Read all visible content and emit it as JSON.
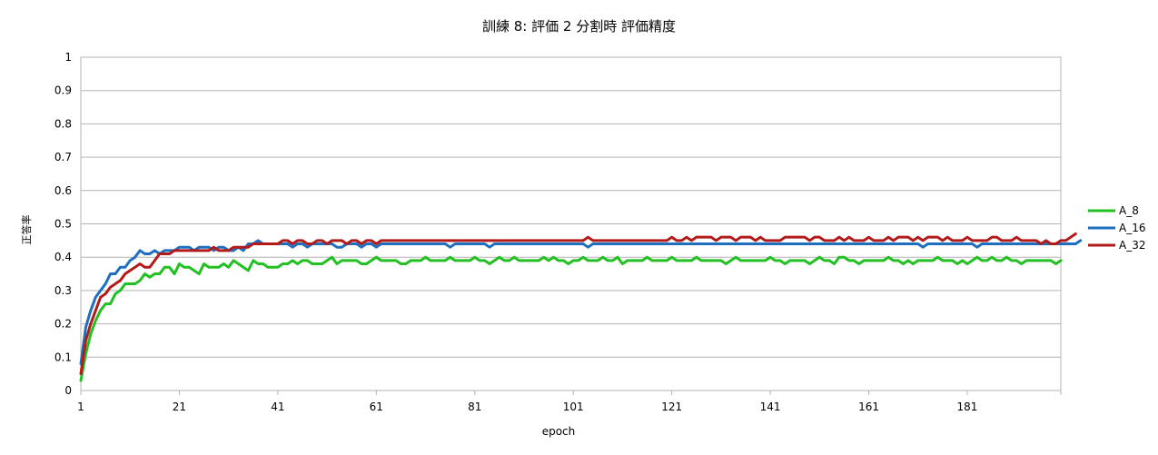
{
  "chart_data": {
    "type": "line",
    "title": "訓練 8: 評価 2  分割時 評価精度",
    "xlabel": "epoch",
    "ylabel": "正答率",
    "ylim": [
      0,
      1
    ],
    "y_ticks": [
      "0",
      "0.1",
      "0.2",
      "0.3",
      "0.4",
      "0.5",
      "0.6",
      "0.7",
      "0.8",
      "0.9",
      "1"
    ],
    "x_ticks": [
      "1",
      "21",
      "41",
      "61",
      "81",
      "101",
      "121",
      "141",
      "161",
      "181"
    ],
    "x_start": 1,
    "x_end": 200,
    "grid": "horizontal",
    "legend_position": "right",
    "series": [
      {
        "name": "A_8",
        "color": "#22c022",
        "values": [
          0.03,
          0.11,
          0.17,
          0.21,
          0.24,
          0.26,
          0.26,
          0.29,
          0.3,
          0.32,
          0.32,
          0.32,
          0.33,
          0.35,
          0.34,
          0.35,
          0.35,
          0.37,
          0.37,
          0.35,
          0.38,
          0.37,
          0.37,
          0.36,
          0.35,
          0.38,
          0.37,
          0.37,
          0.37,
          0.38,
          0.37,
          0.39,
          0.38,
          0.37,
          0.36,
          0.39,
          0.38,
          0.38,
          0.37,
          0.37,
          0.37,
          0.38,
          0.38,
          0.39,
          0.38,
          0.39,
          0.39,
          0.38,
          0.38,
          0.38,
          0.39,
          0.4,
          0.38,
          0.39,
          0.39,
          0.39,
          0.39,
          0.38,
          0.38,
          0.39,
          0.4,
          0.39,
          0.39,
          0.39,
          0.39,
          0.38,
          0.38,
          0.39,
          0.39,
          0.39,
          0.4,
          0.39,
          0.39,
          0.39,
          0.39,
          0.4,
          0.39,
          0.39,
          0.39,
          0.39,
          0.4,
          0.39,
          0.39,
          0.38,
          0.39,
          0.4,
          0.39,
          0.39,
          0.4,
          0.39,
          0.39,
          0.39,
          0.39,
          0.39,
          0.4,
          0.39,
          0.4,
          0.39,
          0.39,
          0.38,
          0.39,
          0.39,
          0.4,
          0.39,
          0.39,
          0.39,
          0.4,
          0.39,
          0.39,
          0.4,
          0.38,
          0.39,
          0.39,
          0.39,
          0.39,
          0.4,
          0.39,
          0.39,
          0.39,
          0.39,
          0.4,
          0.39,
          0.39,
          0.39,
          0.39,
          0.4,
          0.39,
          0.39,
          0.39,
          0.39,
          0.39,
          0.38,
          0.39,
          0.4,
          0.39,
          0.39,
          0.39,
          0.39,
          0.39,
          0.39,
          0.4,
          0.39,
          0.39,
          0.38,
          0.39,
          0.39,
          0.39,
          0.39,
          0.38,
          0.39,
          0.4,
          0.39,
          0.39,
          0.38,
          0.4,
          0.4,
          0.39,
          0.39,
          0.38,
          0.39,
          0.39,
          0.39,
          0.39,
          0.39,
          0.4,
          0.39,
          0.39,
          0.38,
          0.39,
          0.38,
          0.39,
          0.39,
          0.39,
          0.39,
          0.4,
          0.39,
          0.39,
          0.39,
          0.38,
          0.39,
          0.38,
          0.39,
          0.4,
          0.39,
          0.39,
          0.4,
          0.39,
          0.39,
          0.4,
          0.39,
          0.39,
          0.38,
          0.39,
          0.39,
          0.39,
          0.39,
          0.39,
          0.39,
          0.38,
          0.39
        ]
      },
      {
        "name": "A_16",
        "color": "#1f6fbf",
        "values": [
          0.08,
          0.19,
          0.24,
          0.28,
          0.3,
          0.32,
          0.35,
          0.35,
          0.37,
          0.37,
          0.39,
          0.4,
          0.42,
          0.41,
          0.41,
          0.42,
          0.41,
          0.42,
          0.42,
          0.42,
          0.43,
          0.43,
          0.43,
          0.42,
          0.43,
          0.43,
          0.43,
          0.42,
          0.43,
          0.43,
          0.42,
          0.42,
          0.43,
          0.42,
          0.44,
          0.44,
          0.45,
          0.44,
          0.44,
          0.44,
          0.44,
          0.44,
          0.44,
          0.43,
          0.44,
          0.44,
          0.43,
          0.44,
          0.44,
          0.44,
          0.44,
          0.44,
          0.43,
          0.43,
          0.44,
          0.44,
          0.44,
          0.43,
          0.44,
          0.44,
          0.43,
          0.44,
          0.44,
          0.44,
          0.44,
          0.44,
          0.44,
          0.44,
          0.44,
          0.44,
          0.44,
          0.44,
          0.44,
          0.44,
          0.44,
          0.43,
          0.44,
          0.44,
          0.44,
          0.44,
          0.44,
          0.44,
          0.44,
          0.43,
          0.44,
          0.44,
          0.44,
          0.44,
          0.44,
          0.44,
          0.44,
          0.44,
          0.44,
          0.44,
          0.44,
          0.44,
          0.44,
          0.44,
          0.44,
          0.44,
          0.44,
          0.44,
          0.44,
          0.43,
          0.44,
          0.44,
          0.44,
          0.44,
          0.44,
          0.44,
          0.44,
          0.44,
          0.44,
          0.44,
          0.44,
          0.44,
          0.44,
          0.44,
          0.44,
          0.44,
          0.44,
          0.44,
          0.44,
          0.44,
          0.44,
          0.44,
          0.44,
          0.44,
          0.44,
          0.44,
          0.44,
          0.44,
          0.44,
          0.44,
          0.44,
          0.44,
          0.44,
          0.44,
          0.44,
          0.44,
          0.44,
          0.44,
          0.44,
          0.44,
          0.44,
          0.44,
          0.44,
          0.44,
          0.44,
          0.44,
          0.44,
          0.44,
          0.44,
          0.44,
          0.44,
          0.44,
          0.44,
          0.44,
          0.44,
          0.44,
          0.44,
          0.44,
          0.44,
          0.44,
          0.44,
          0.44,
          0.44,
          0.44,
          0.44,
          0.44,
          0.44,
          0.43,
          0.44,
          0.44,
          0.44,
          0.44,
          0.44,
          0.44,
          0.44,
          0.44,
          0.44,
          0.44,
          0.43,
          0.44,
          0.44,
          0.44,
          0.44,
          0.44,
          0.44,
          0.44,
          0.44,
          0.44,
          0.44,
          0.44,
          0.44,
          0.44,
          0.44,
          0.44,
          0.44,
          0.44,
          0.44,
          0.44,
          0.44,
          0.45
        ]
      },
      {
        "name": "A_32",
        "color": "#b31b1b",
        "values": [
          0.05,
          0.15,
          0.2,
          0.24,
          0.28,
          0.29,
          0.31,
          0.32,
          0.33,
          0.35,
          0.36,
          0.37,
          0.38,
          0.37,
          0.37,
          0.39,
          0.41,
          0.41,
          0.41,
          0.42,
          0.42,
          0.42,
          0.42,
          0.42,
          0.42,
          0.42,
          0.42,
          0.43,
          0.42,
          0.42,
          0.42,
          0.43,
          0.43,
          0.43,
          0.43,
          0.44,
          0.44,
          0.44,
          0.44,
          0.44,
          0.44,
          0.45,
          0.45,
          0.44,
          0.45,
          0.45,
          0.44,
          0.44,
          0.45,
          0.45,
          0.44,
          0.45,
          0.45,
          0.45,
          0.44,
          0.45,
          0.45,
          0.44,
          0.45,
          0.45,
          0.44,
          0.45,
          0.45,
          0.45,
          0.45,
          0.45,
          0.45,
          0.45,
          0.45,
          0.45,
          0.45,
          0.45,
          0.45,
          0.45,
          0.45,
          0.45,
          0.45,
          0.45,
          0.45,
          0.45,
          0.45,
          0.45,
          0.45,
          0.45,
          0.45,
          0.45,
          0.45,
          0.45,
          0.45,
          0.45,
          0.45,
          0.45,
          0.45,
          0.45,
          0.45,
          0.45,
          0.45,
          0.45,
          0.45,
          0.45,
          0.45,
          0.45,
          0.45,
          0.46,
          0.45,
          0.45,
          0.45,
          0.45,
          0.45,
          0.45,
          0.45,
          0.45,
          0.45,
          0.45,
          0.45,
          0.45,
          0.45,
          0.45,
          0.45,
          0.45,
          0.46,
          0.45,
          0.45,
          0.46,
          0.45,
          0.46,
          0.46,
          0.46,
          0.46,
          0.45,
          0.46,
          0.46,
          0.46,
          0.45,
          0.46,
          0.46,
          0.46,
          0.45,
          0.46,
          0.45,
          0.45,
          0.45,
          0.45,
          0.46,
          0.46,
          0.46,
          0.46,
          0.46,
          0.45,
          0.46,
          0.46,
          0.45,
          0.45,
          0.45,
          0.46,
          0.45,
          0.46,
          0.45,
          0.45,
          0.45,
          0.46,
          0.45,
          0.45,
          0.45,
          0.46,
          0.45,
          0.46,
          0.46,
          0.46,
          0.45,
          0.46,
          0.45,
          0.46,
          0.46,
          0.46,
          0.45,
          0.46,
          0.45,
          0.45,
          0.45,
          0.46,
          0.45,
          0.45,
          0.45,
          0.45,
          0.46,
          0.46,
          0.45,
          0.45,
          0.45,
          0.46,
          0.45,
          0.45,
          0.45,
          0.45,
          0.44,
          0.45,
          0.44,
          0.44,
          0.45,
          0.45,
          0.46,
          0.47
        ]
      }
    ]
  }
}
